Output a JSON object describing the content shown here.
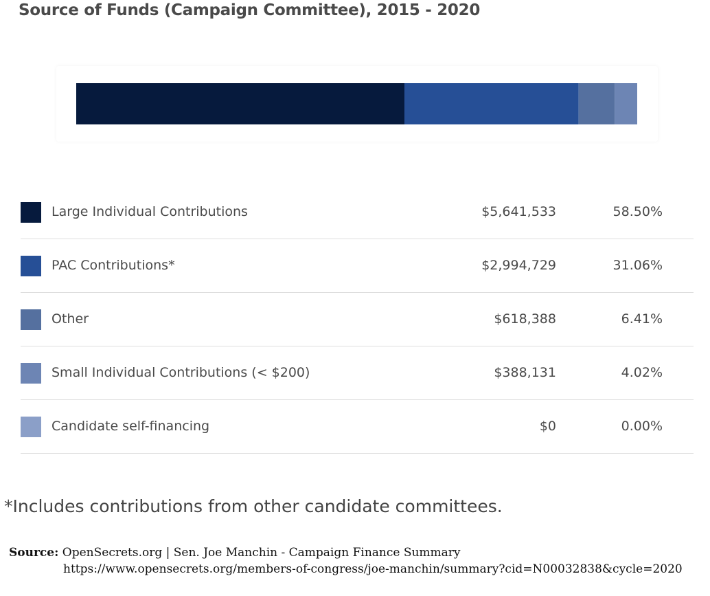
{
  "title": "Source of Funds (Campaign Committee), 2015 - 2020",
  "chart_data": {
    "type": "bar",
    "orientation": "horizontal-stacked",
    "title": "Source of Funds (Campaign Committee), 2015 - 2020",
    "categories": [
      "Large Individual Contributions",
      "PAC Contributions*",
      "Other",
      "Small Individual Contributions (< $200)",
      "Candidate self-financing"
    ],
    "values": [
      5641533,
      2994729,
      618388,
      388131,
      0
    ],
    "percent": [
      58.5,
      31.06,
      6.41,
      4.02,
      0.0
    ],
    "colors": [
      "#061a3d",
      "#264f96",
      "#55709f",
      "#6d85b4",
      "#8b9fc8"
    ],
    "rows": [
      {
        "label": "Large Individual Contributions",
        "amount": "$5,641,533",
        "percent": "58.50%"
      },
      {
        "label": "PAC Contributions*",
        "amount": "$2,994,729",
        "percent": "31.06%"
      },
      {
        "label": "Other",
        "amount": "$618,388",
        "percent": "6.41%"
      },
      {
        "label": "Small Individual Contributions (< $200)",
        "amount": "$388,131",
        "percent": "4.02%"
      },
      {
        "label": "Candidate self-financing",
        "amount": "$0",
        "percent": "0.00%"
      }
    ]
  },
  "footnote": "*Includes contributions from other candidate committees.",
  "source": {
    "label": "Source:",
    "text": "OpenSecrets.org  | Sen. Joe Manchin - Campaign Finance Summary",
    "url": "https://www.opensecrets.org/members-of-congress/joe-manchin/summary?cid=N00032838&cycle=2020"
  }
}
